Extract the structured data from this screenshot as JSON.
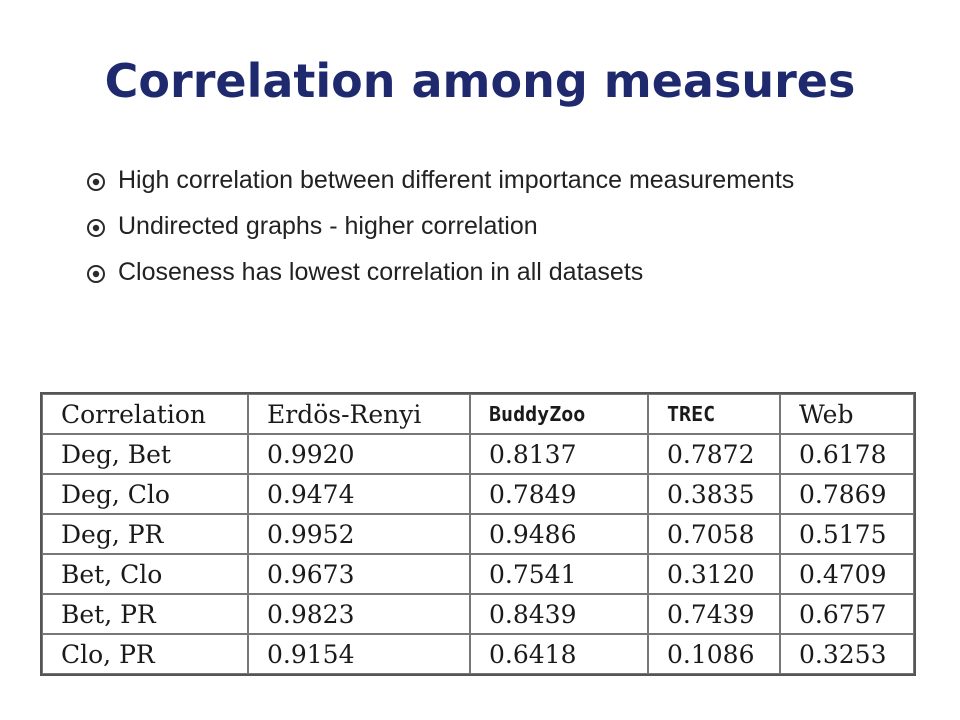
{
  "slide": {
    "title": "Correlation among measures",
    "bullet_icon": "circled-dot-icon",
    "bullets": [
      "High correlation between different importance measurements",
      "Undirected graphs - higher correlation",
      "Closeness has lowest correlation in all datasets"
    ]
  },
  "table": {
    "headers": [
      "Correlation",
      "Erdös-Renyi",
      "BuddyZoo",
      "TREC",
      "Web"
    ],
    "rows": [
      [
        "Deg, Bet",
        "0.9920",
        "0.8137",
        "0.7872",
        "0.6178"
      ],
      [
        "Deg, Clo",
        "0.9474",
        "0.7849",
        "0.3835",
        "0.7869"
      ],
      [
        "Deg, PR",
        "0.9952",
        "0.9486",
        "0.7058",
        "0.5175"
      ],
      [
        "Bet, Clo",
        "0.9673",
        "0.7541",
        "0.3120",
        "0.4709"
      ],
      [
        "Bet, PR",
        "0.9823",
        "0.8439",
        "0.7439",
        "0.6757"
      ],
      [
        "Clo, PR",
        "0.9154",
        "0.6418",
        "0.1086",
        "0.3253"
      ]
    ]
  },
  "colors": {
    "title": "#1f2a6e",
    "text": "#222222",
    "table_border": "#777777"
  }
}
